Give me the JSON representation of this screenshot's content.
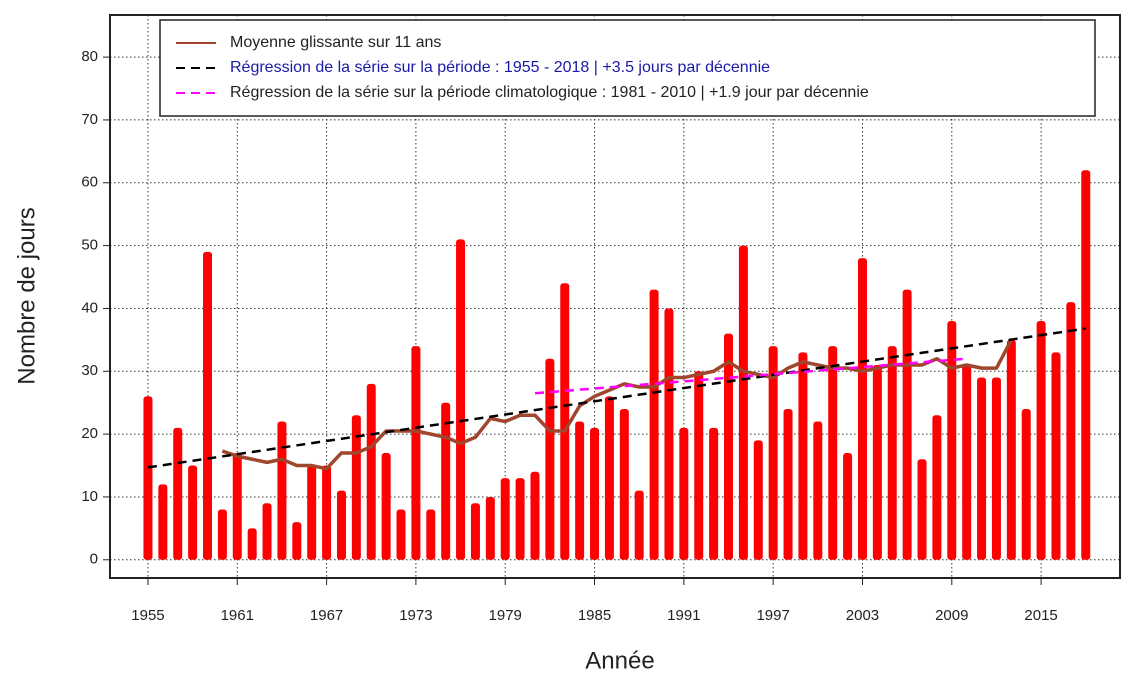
{
  "chart_data": {
    "type": "bar",
    "xlabel": "Année",
    "ylabel": "Nombre de jours",
    "x": [
      1955,
      1956,
      1957,
      1958,
      1959,
      1960,
      1961,
      1962,
      1963,
      1964,
      1965,
      1966,
      1967,
      1968,
      1969,
      1970,
      1971,
      1972,
      1973,
      1974,
      1975,
      1976,
      1977,
      1978,
      1979,
      1980,
      1981,
      1982,
      1983,
      1984,
      1985,
      1986,
      1987,
      1988,
      1989,
      1990,
      1991,
      1992,
      1993,
      1994,
      1995,
      1996,
      1997,
      1998,
      1999,
      2000,
      2001,
      2002,
      2003,
      2004,
      2005,
      2006,
      2007,
      2008,
      2009,
      2010,
      2011,
      2012,
      2013,
      2014,
      2015,
      2016,
      2017,
      2018
    ],
    "values": [
      26,
      12,
      21,
      15,
      49,
      8,
      17,
      5,
      9,
      22,
      6,
      15,
      15,
      11,
      23,
      28,
      17,
      8,
      34,
      8,
      25,
      51,
      9,
      10,
      13,
      13,
      14,
      32,
      44,
      22,
      21,
      26,
      24,
      11,
      43,
      40,
      21,
      30,
      21,
      36,
      50,
      19,
      34,
      24,
      33,
      22,
      34,
      17,
      48,
      31,
      34,
      43,
      16,
      23,
      38,
      31,
      29,
      29,
      35,
      24,
      38,
      33,
      41,
      62
    ],
    "color": "#ff0000",
    "series": [
      {
        "name": "Moyenne glissante sur 11 ans",
        "color": "#a0462d",
        "label_color": "#222222",
        "dash": "none",
        "x": [
          1960,
          1961,
          1962,
          1963,
          1964,
          1965,
          1966,
          1967,
          1968,
          1969,
          1970,
          1971,
          1972,
          1973,
          1974,
          1975,
          1976,
          1977,
          1978,
          1979,
          1980,
          1981,
          1982,
          1983,
          1984,
          1985,
          1986,
          1987,
          1988,
          1989,
          1990,
          1991,
          1992,
          1993,
          1994,
          1995,
          1996,
          1997,
          1998,
          1999,
          2000,
          2001,
          2002,
          2003,
          2004,
          2005,
          2006,
          2007,
          2008,
          2009,
          2010,
          2011,
          2012,
          2013
        ],
        "values": [
          17.3,
          16.5,
          16,
          15.5,
          16,
          15,
          15,
          14.5,
          17,
          17,
          18,
          20.5,
          20.5,
          20.5,
          20,
          19.5,
          18.5,
          19.5,
          22.5,
          22,
          23,
          23,
          20.5,
          20.5,
          24.5,
          26,
          27,
          28,
          27.5,
          27.5,
          29,
          29,
          29.5,
          30,
          31.5,
          30,
          29.5,
          29,
          30.5,
          31.5,
          31,
          30.5,
          30.5,
          30,
          30.5,
          31,
          31,
          31,
          32,
          30.5,
          31,
          30.5,
          30.5,
          35
        ]
      },
      {
        "name": "Régression de la série sur la période : 1955 - 2018 | +3.5 jours par décennie",
        "color": "#000000",
        "label_color": "#1a1aa8",
        "dash": "9 6",
        "x": [
          1955,
          2018
        ],
        "values": [
          14.7,
          36.8
        ]
      },
      {
        "name": "Régression de la série sur la période climatologique : 1981 - 2010 | +1.9 jour par décennie",
        "color": "#ff00ff",
        "label_color": "#222222",
        "dash": "9 6",
        "x": [
          1981,
          2010
        ],
        "values": [
          26.5,
          32
        ]
      }
    ],
    "xlim": [
      1952.45,
      2020.3
    ],
    "xticks": [
      1955,
      1961,
      1967,
      1973,
      1979,
      1985,
      1991,
      1997,
      2003,
      2009,
      2015
    ],
    "ylim": [
      -2.9,
      86.7
    ],
    "yticks": [
      0,
      10,
      20,
      30,
      40,
      50,
      60,
      70,
      80
    ],
    "grid": true,
    "legend": "top"
  }
}
